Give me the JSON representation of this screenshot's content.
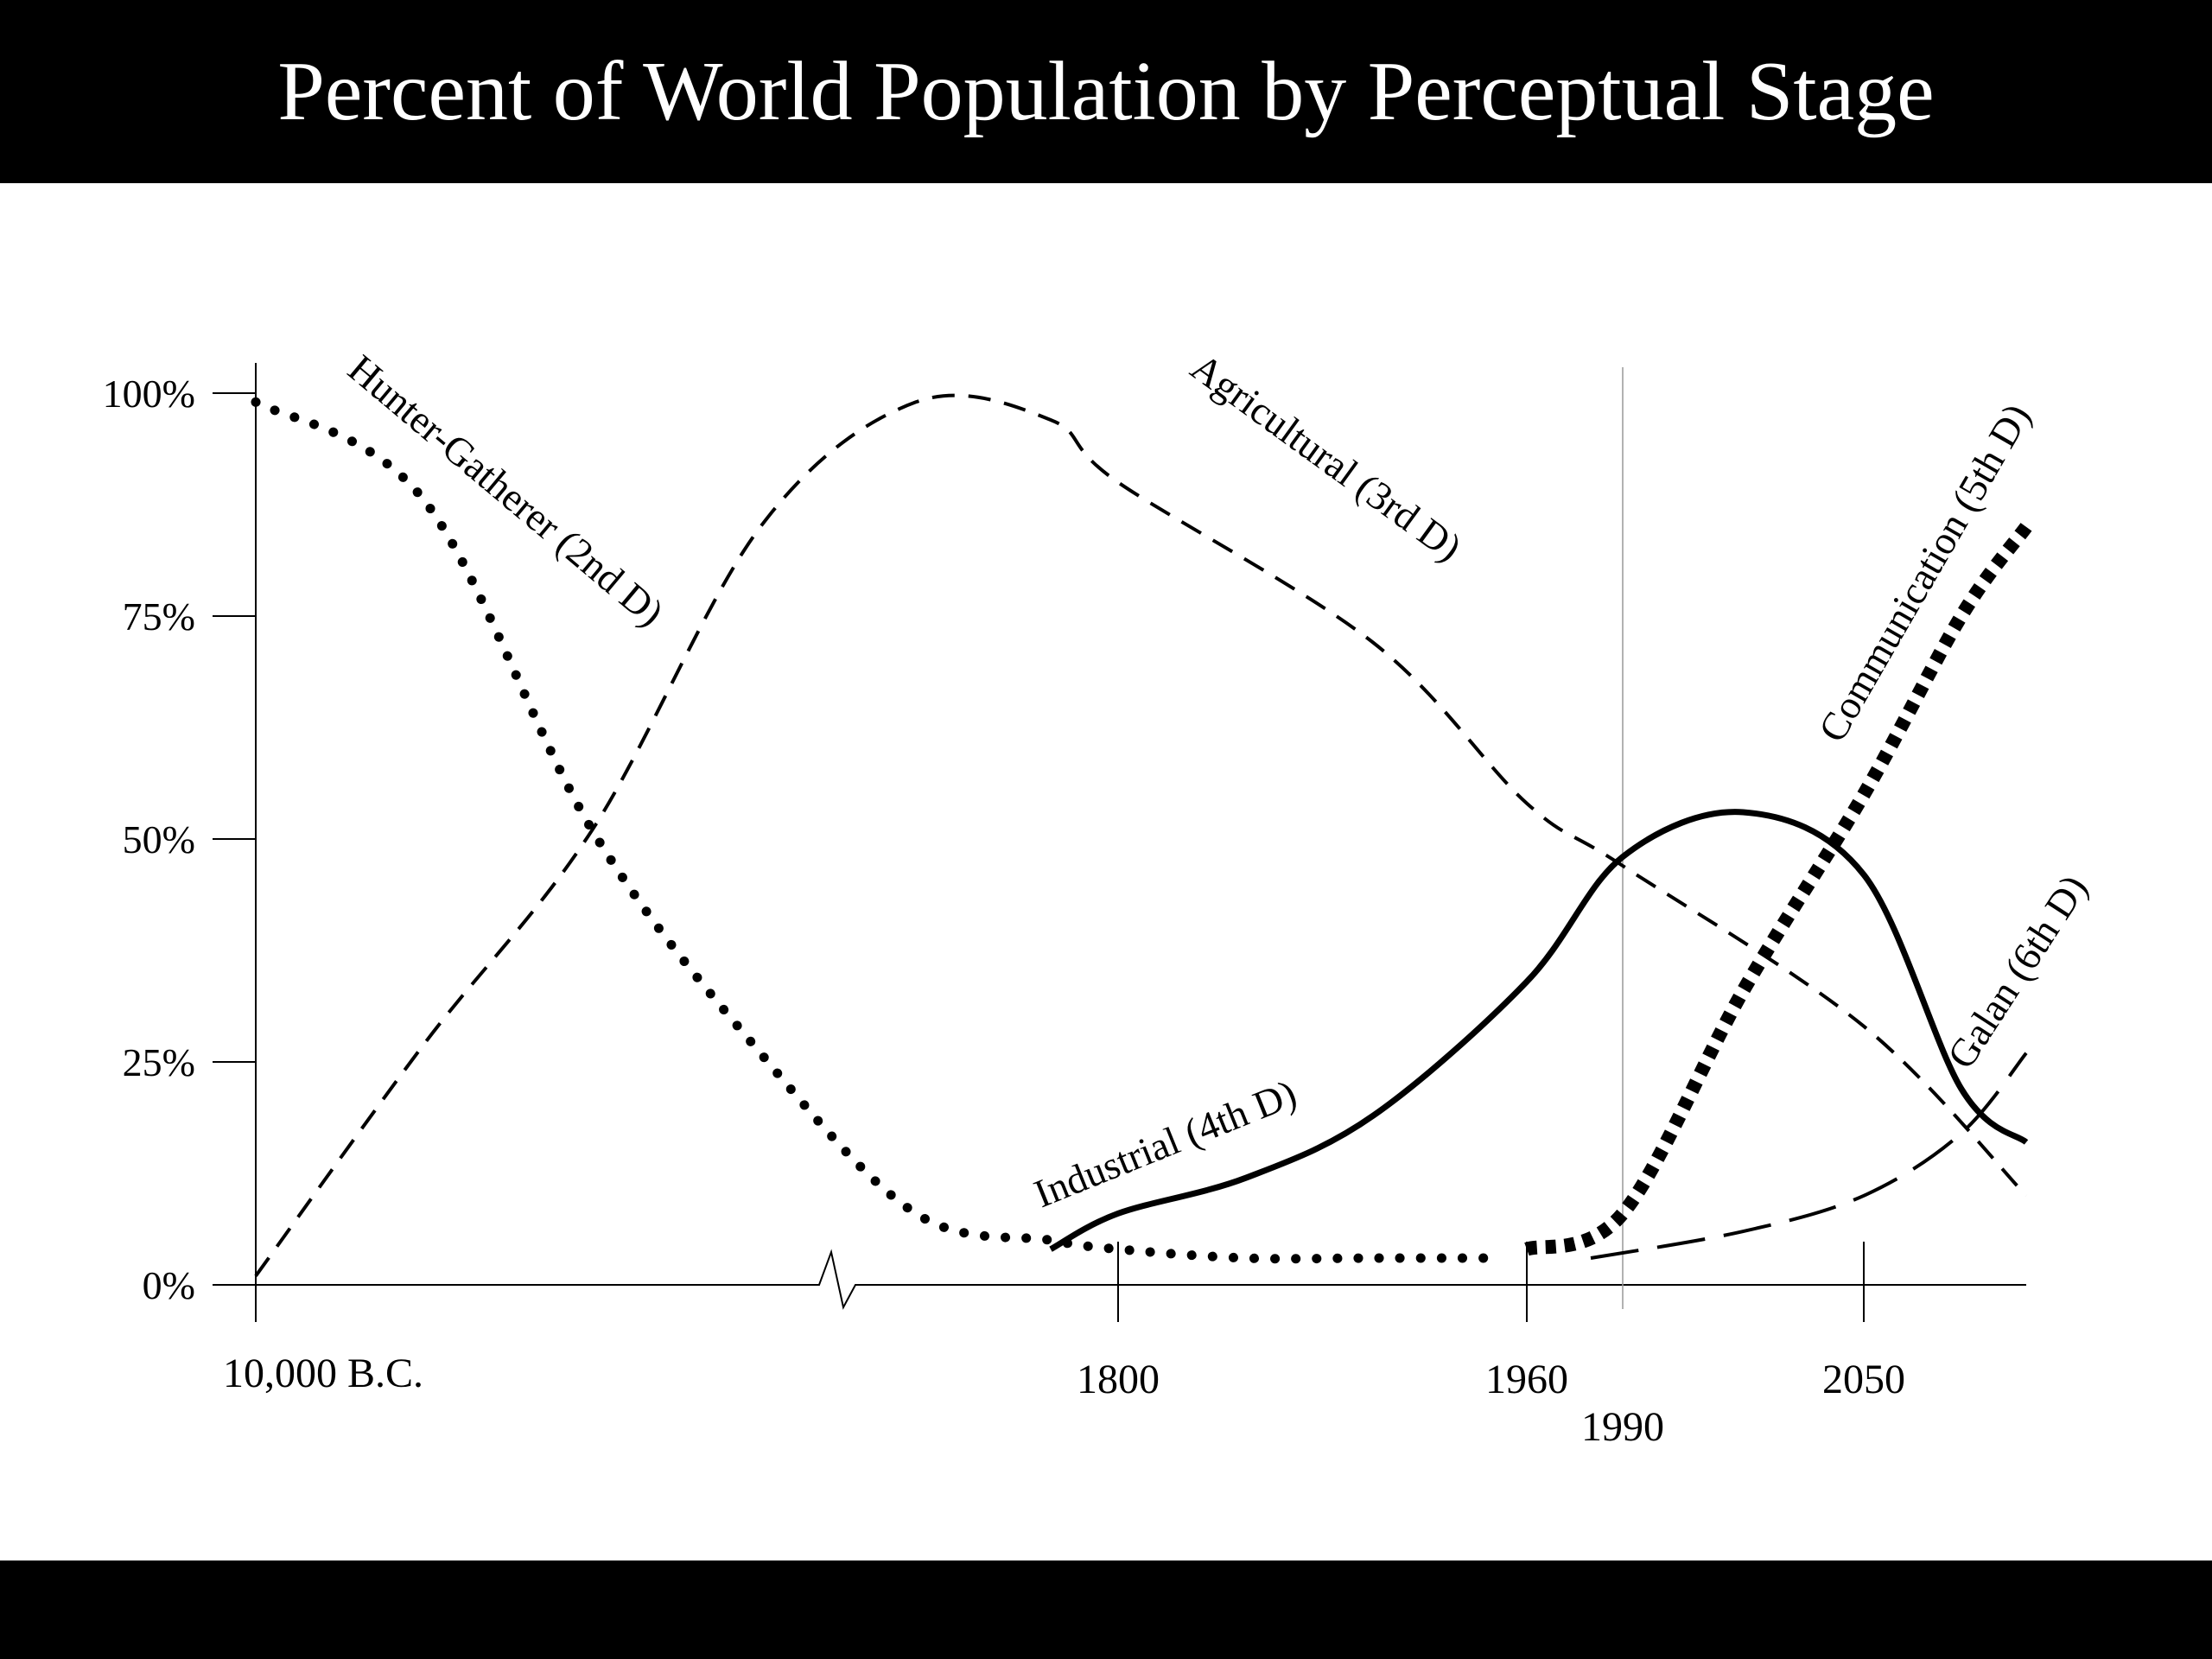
{
  "header": {
    "title": "Percent of World Population by Perceptual Stage"
  },
  "chart_data": {
    "type": "line",
    "title": "Percent of World Population by Perceptual Stage",
    "xlabel": "",
    "ylabel": "",
    "x_ticks": [
      "10,000 B.C.",
      "1800",
      "1960",
      "1990",
      "2050"
    ],
    "y_ticks": [
      "0%",
      "25%",
      "50%",
      "75%",
      "100%"
    ],
    "ylim": [
      0,
      100
    ],
    "axis_break": "broken x-axis between 10,000 B.C. and 1800",
    "reference_line": "1990",
    "series": [
      {
        "name": "Hunter-Gatherer (2nd D)",
        "style": "dotted",
        "x": [
          "10,000 B.C.",
          "-7000",
          "-4000",
          "-1000",
          "1500",
          "1700",
          "1800",
          "1850",
          "1900",
          "1950"
        ],
        "y": [
          99,
          88,
          51,
          26,
          8,
          5,
          4,
          3,
          3,
          3
        ]
      },
      {
        "name": "Agricultural (3rd D)",
        "style": "dashed",
        "x": [
          "10,000 B.C.",
          "-7000",
          "-4000",
          "-1000",
          "1500",
          "1700",
          "1800",
          "1900",
          "1960",
          "1990",
          "2050",
          "2100"
        ],
        "y": [
          1,
          27,
          51,
          85,
          99,
          97,
          90,
          72,
          54,
          47,
          29,
          10
        ]
      },
      {
        "name": "Industrial (4th D)",
        "style": "solid",
        "x": [
          "1700",
          "1800",
          "1850",
          "1900",
          "1960",
          "1990",
          "2020",
          "2050",
          "2080",
          "2100"
        ],
        "y": [
          4,
          8,
          12,
          19,
          34,
          48,
          53,
          46,
          22,
          16
        ]
      },
      {
        "name": "Communication (5th D)",
        "style": "heavy-dotted",
        "x": [
          "1960",
          "1990",
          "2020",
          "2050",
          "2080",
          "2100"
        ],
        "y": [
          4,
          8,
          33,
          55,
          75,
          85
        ]
      },
      {
        "name": "Galan (6th D)",
        "style": "long-dash",
        "x": [
          "1980",
          "2020",
          "2050",
          "2080",
          "2100"
        ],
        "y": [
          3,
          6,
          10,
          17,
          26
        ]
      }
    ]
  }
}
